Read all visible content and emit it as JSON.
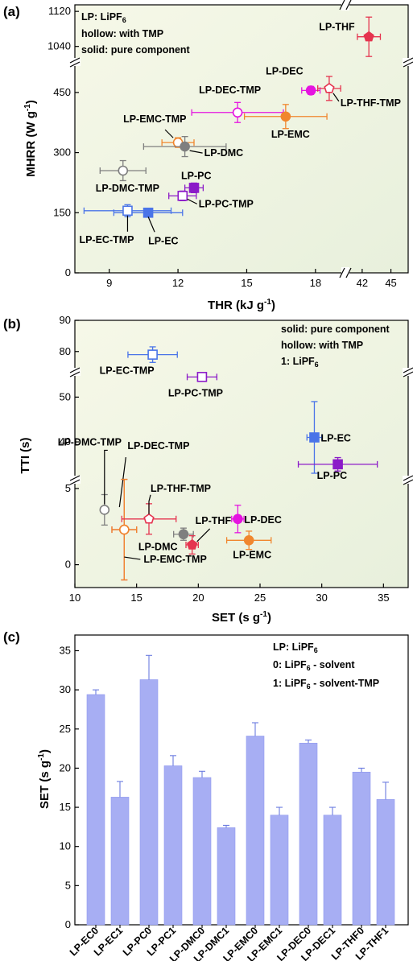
{
  "panels": {
    "a": "(a)",
    "b": "(b)",
    "c": "(c)"
  },
  "chart_data": [
    {
      "type": "scatter",
      "panel": "(a)",
      "xlabel": "THR (kJ g",
      "xlabel_sup": "-1",
      "xlabel_end": ")",
      "ylabel": "MHRR (W g",
      "ylabel_sup": "-1",
      "ylabel_end": ")",
      "x_segments": [
        [
          7.5,
          19.2
        ],
        [
          40.5,
          46.8
        ]
      ],
      "y_segments": [
        [
          0,
          520
        ],
        [
          1010,
          1135
        ]
      ],
      "x_ticks": [
        "9",
        "12",
        "15",
        "18",
        "42",
        "45"
      ],
      "y_ticks": [
        "0",
        "150",
        "300",
        "450",
        "1040",
        "1120"
      ],
      "legend": [
        "LP: LiPF6",
        "hollow: with TMP",
        "solid: pure component"
      ],
      "points": [
        {
          "label": "LP-THF",
          "x": 42.7,
          "xerr": 1.2,
          "y": 1062,
          "yerr": 45,
          "marker": "pentagon",
          "filled": true,
          "color": "#e5344f"
        },
        {
          "label": "LP-DEC",
          "x": 17.8,
          "xerr": 0.4,
          "y": 455,
          "yerr": 10,
          "marker": "circle",
          "filled": true,
          "color": "#e514e0"
        },
        {
          "label": "LP-THF-TMP",
          "x": 18.6,
          "xerr": 0.5,
          "y": 460,
          "yerr": 30,
          "marker": "pentagon",
          "filled": false,
          "color": "#e5344f"
        },
        {
          "label": "LP-DEC-TMP",
          "x": 14.6,
          "xerr": 2.0,
          "y": 400,
          "yerr": 25,
          "marker": "circle",
          "filled": false,
          "color": "#e514e0"
        },
        {
          "label": "LP-EMC",
          "x": 16.7,
          "xerr": 1.8,
          "y": 390,
          "yerr": 30,
          "marker": "circle",
          "filled": true,
          "color": "#f0862e"
        },
        {
          "label": "LP-EMC-TMP",
          "x": 12.0,
          "xerr": 0.7,
          "y": 325,
          "yerr": 12,
          "marker": "circle",
          "filled": false,
          "color": "#f0862e"
        },
        {
          "label": "LP-DMC",
          "x": 12.3,
          "xerr": 1.8,
          "y": 315,
          "yerr": 25,
          "marker": "circle",
          "filled": true,
          "color": "#7f7f7f"
        },
        {
          "label": "LP-DMC-TMP",
          "x": 9.6,
          "xerr": 1.0,
          "y": 255,
          "yerr": 25,
          "marker": "circle",
          "filled": false,
          "color": "#7f7f7f"
        },
        {
          "label": "LP-PC",
          "x": 12.7,
          "xerr": 0.4,
          "y": 212,
          "yerr": 12,
          "marker": "square",
          "filled": true,
          "color": "#8b1ac8"
        },
        {
          "label": "LP-PC-TMP",
          "x": 12.2,
          "xerr": 0.6,
          "y": 192,
          "yerr": 12,
          "marker": "square",
          "filled": false,
          "color": "#8b1ac8"
        },
        {
          "label": "LP-EC",
          "x": 10.7,
          "xerr": 1.5,
          "y": 150,
          "yerr": 5,
          "marker": "square",
          "filled": true,
          "color": "#4a74e8"
        },
        {
          "label": "LP-EC-TMP",
          "x": 9.8,
          "xerr": 1.9,
          "y": 155,
          "yerr": 15,
          "marker": "square",
          "filled": false,
          "color": "#4a74e8"
        }
      ]
    },
    {
      "type": "scatter",
      "panel": "(b)",
      "xlabel": "SET (s g",
      "xlabel_sup": "-1",
      "xlabel_end": ")",
      "ylabel": "TTI (s)",
      "xlim": [
        10,
        37
      ],
      "y_segments": [
        [
          -1.5,
          6
        ],
        [
          33,
          56
        ],
        [
          74,
          90
        ]
      ],
      "x_ticks": [
        "10",
        "15",
        "20",
        "25",
        "30",
        "35"
      ],
      "y_ticks": [
        "0",
        "5",
        "40",
        "50",
        "80",
        "90"
      ],
      "legend": [
        "solid: pure component",
        "hollow: with TMP",
        "1: LiPF6"
      ],
      "points": [
        {
          "label": "LP-EC-TMP",
          "x": 16.3,
          "xerr": 2.0,
          "y": 79,
          "yerr": 2.5,
          "marker": "square",
          "filled": false,
          "color": "#4a74e8"
        },
        {
          "label": "LP-PC-TMP",
          "x": 20.3,
          "xerr": 1.2,
          "y": 54.5,
          "yerr": 0.5,
          "marker": "square",
          "filled": false,
          "color": "#8b1ac8"
        },
        {
          "label": "LP-EC",
          "x": 29.4,
          "xerr": 0.6,
          "y": 41,
          "yerr": 8,
          "marker": "square",
          "filled": true,
          "color": "#4a74e8"
        },
        {
          "label": "LP-PC",
          "x": 31.3,
          "xerr": 3.2,
          "y": 35,
          "yerr": 1.5,
          "marker": "square",
          "filled": true,
          "color": "#8b1ac8"
        },
        {
          "label": "LP-DMC-TMP",
          "x": 12.4,
          "xerr": 0.2,
          "y": 3.6,
          "yerr": 1.0,
          "marker": "circle",
          "filled": false,
          "color": "#7f7f7f"
        },
        {
          "label": "LP-DEC-TMP",
          "x": 14.0,
          "xerr": 1.0,
          "y": 2.3,
          "yerr": 3.3,
          "marker": "circle",
          "filled": false,
          "color": "#e5344f"
        },
        {
          "label": "LP-EMC-TMP",
          "x": 14.0,
          "xerr": 1.0,
          "y": 2.3,
          "yerr": 3.3,
          "marker": "circle",
          "filled": false,
          "color": "#f0862e"
        },
        {
          "label": "LP-THF-TMP",
          "x": 16.0,
          "xerr": 2.2,
          "y": 3.0,
          "yerr": 1.0,
          "marker": "pentagon",
          "filled": false,
          "color": "#e5344f"
        },
        {
          "label": "LP-DMC",
          "x": 18.8,
          "xerr": 0.8,
          "y": 2.0,
          "yerr": 0.4,
          "marker": "circle",
          "filled": true,
          "color": "#7f7f7f"
        },
        {
          "label": "LP-THF",
          "x": 19.5,
          "xerr": 0.5,
          "y": 1.3,
          "yerr": 0.6,
          "marker": "pentagon",
          "filled": true,
          "color": "#e5344f"
        },
        {
          "label": "LP-DEC",
          "x": 23.2,
          "xerr": 0.5,
          "y": 3.0,
          "yerr": 0.9,
          "marker": "circle",
          "filled": true,
          "color": "#e514e0"
        },
        {
          "label": "LP-EMC",
          "x": 24.1,
          "xerr": 1.8,
          "y": 1.6,
          "yerr": 0.6,
          "marker": "circle",
          "filled": true,
          "color": "#f0862e"
        }
      ]
    },
    {
      "type": "bar",
      "panel": "(c)",
      "ylabel": "SET (s g",
      "ylabel_sup": "-1",
      "ylabel_end": ")",
      "ylim": [
        0,
        37
      ],
      "y_ticks": [
        "0",
        "5",
        "10",
        "15",
        "20",
        "25",
        "30",
        "35"
      ],
      "bar_color": "#a7aef3",
      "err_color": "#6b7ce0",
      "legend": [
        "LP:  LiPF6",
        "0: LiPF6 - solvent",
        "1: LiPF6 - solvent-TMP"
      ],
      "categories": [
        "LP-EC0",
        "LP-EC1",
        "LP-PC0",
        "LP-PC1",
        "LP-DMC0",
        "LP-DMC1",
        "LP-EMC0",
        "LP-EMC1",
        "LP-DEC0",
        "LP-DEC1",
        "LP-THF0",
        "LP-THF1"
      ],
      "values": [
        29.4,
        16.3,
        31.3,
        20.3,
        18.8,
        12.4,
        24.1,
        14.0,
        23.2,
        14.0,
        19.5,
        16.0
      ],
      "errors": [
        0.6,
        2.0,
        3.1,
        1.3,
        0.8,
        0.3,
        1.7,
        1.0,
        0.4,
        1.0,
        0.5,
        2.2
      ]
    }
  ]
}
